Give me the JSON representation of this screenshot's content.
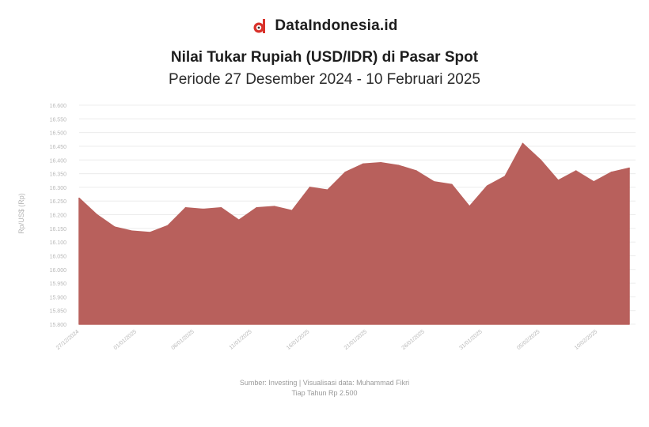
{
  "brand": {
    "name": "DataIndonesia.id",
    "logo_icon": "dataindonesia-logo-icon",
    "logo_color": "#d9322b"
  },
  "title": "Nilai Tukar Rupiah (USD/IDR) di Pasar Spot",
  "subtitle": "Periode 27 Desember 2024 - 10 Februari 2025",
  "source": {
    "line1": "Sumber: Investing | Visualisasi data: Muhammad Fikri",
    "line2": "Tiap Tahun Rp 2.500"
  },
  "chart_data": {
    "type": "area",
    "ylabel": "Rp/US$ (Rp)",
    "ylim": [
      15800,
      16600
    ],
    "yticks": [
      15800,
      15850,
      15900,
      15950,
      16000,
      16050,
      16100,
      16150,
      16200,
      16250,
      16300,
      16350,
      16400,
      16450,
      16500,
      16550,
      16600
    ],
    "x_ticks": [
      "27/12/2024",
      "01/01/2025",
      "06/01/2025",
      "11/01/2025",
      "16/01/2025",
      "21/01/2025",
      "26/01/2025",
      "31/01/2025",
      "05/02/2025",
      "10/02/2025"
    ],
    "fill_color": "#b8605c",
    "grid": true,
    "series": [
      {
        "values": [
          16260,
          16200,
          16155,
          16140,
          16135,
          16160,
          16225,
          16220,
          16225,
          16180,
          16225,
          16230,
          16215,
          16300,
          16290,
          16355,
          16385,
          16390,
          16380,
          16360,
          16320,
          16310,
          16230,
          16305,
          16340,
          16460,
          16400,
          16325,
          16360,
          16320,
          16355,
          16370
        ]
      }
    ]
  }
}
